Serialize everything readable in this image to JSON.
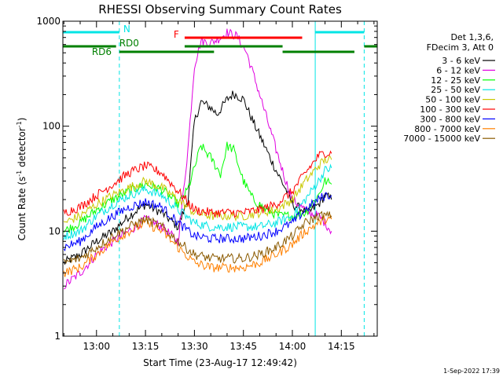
{
  "chart_data": {
    "type": "line",
    "title": "RHESSI Observing Summary Count Rates",
    "xlabel": "Start Time (23-Aug-17 12:49:42)",
    "ylabel_parts": [
      "Count Rate (s",
      "-1",
      " detector",
      "-1",
      ")"
    ],
    "yscale": "log",
    "ylim": [
      1,
      1000
    ],
    "xlim": [
      "12:49:42",
      "14:26:00"
    ],
    "y_ticks": [
      {
        "value": 1,
        "label": "1"
      },
      {
        "value": 10,
        "label": "10"
      },
      {
        "value": 100,
        "label": "100"
      },
      {
        "value": 1000,
        "label": "1000"
      }
    ],
    "x_ticks": [
      {
        "value": "13:00",
        "label": "13:00"
      },
      {
        "value": "13:15",
        "label": "13:15"
      },
      {
        "value": "13:30",
        "label": "13:30"
      },
      {
        "value": "13:45",
        "label": "13:45"
      },
      {
        "value": "14:00",
        "label": "14:00"
      },
      {
        "value": "14:15",
        "label": "14:15"
      }
    ],
    "legend_header": [
      "Det 1,3,6,",
      "FDecim 3, Att 0"
    ],
    "series": [
      {
        "name": "3 - 6 keV",
        "color": "#000000",
        "x": [
          "12:50",
          "12:55",
          "13:00",
          "13:05",
          "13:10",
          "13:15",
          "13:20",
          "13:25",
          "13:28",
          "13:30",
          "13:32",
          "13:35",
          "13:37",
          "13:40",
          "13:42",
          "13:45",
          "13:48",
          "13:52",
          "13:55",
          "13:58",
          "14:00",
          "14:05",
          "14:08",
          "14:10",
          "14:12"
        ],
        "y": [
          5,
          6,
          8,
          10,
          14,
          18,
          15,
          11,
          20,
          110,
          170,
          150,
          130,
          180,
          205,
          180,
          110,
          60,
          38,
          25,
          18,
          15,
          18,
          22,
          20
        ]
      },
      {
        "name": "6 - 12 keV",
        "color": "#e000e0",
        "x": [
          "12:50",
          "12:55",
          "13:00",
          "13:05",
          "13:10",
          "13:15",
          "13:20",
          "13:25",
          "13:28",
          "13:30",
          "13:32",
          "13:35",
          "13:38",
          "13:40",
          "13:43",
          "13:46",
          "13:50",
          "13:55",
          "13:58",
          "14:00",
          "14:05",
          "14:08",
          "14:10",
          "14:12"
        ],
        "y": [
          3,
          4,
          6,
          8,
          10,
          13,
          11,
          8,
          60,
          380,
          650,
          620,
          700,
          780,
          720,
          500,
          200,
          60,
          30,
          20,
          15,
          14,
          12,
          10
        ]
      },
      {
        "name": "12 - 25 keV",
        "color": "#00ff00",
        "x": [
          "12:50",
          "12:55",
          "13:00",
          "13:05",
          "13:10",
          "13:15",
          "13:20",
          "13:25",
          "13:28",
          "13:30",
          "13:32",
          "13:35",
          "13:38",
          "13:40",
          "13:42",
          "13:45",
          "13:48",
          "13:52",
          "13:56",
          "14:00",
          "14:04",
          "14:08",
          "14:10",
          "14:12"
        ],
        "y": [
          10,
          12,
          16,
          20,
          24,
          28,
          25,
          18,
          25,
          40,
          65,
          50,
          35,
          65,
          60,
          30,
          20,
          16,
          14,
          14,
          15,
          22,
          30,
          28
        ]
      },
      {
        "name": "25 - 50 keV",
        "color": "#00e5e5",
        "x": [
          "12:50",
          "12:55",
          "13:00",
          "13:05",
          "13:10",
          "13:15",
          "13:20",
          "13:25",
          "13:30",
          "13:35",
          "13:40",
          "13:45",
          "13:50",
          "13:55",
          "14:00",
          "14:04",
          "14:08",
          "14:10",
          "14:12"
        ],
        "y": [
          9,
          10,
          14,
          18,
          22,
          25,
          22,
          16,
          12,
          11,
          11,
          11,
          11,
          12,
          14,
          20,
          30,
          38,
          40
        ]
      },
      {
        "name": "50 - 100 keV",
        "color": "#c8c800",
        "x": [
          "12:50",
          "12:55",
          "13:00",
          "13:05",
          "13:10",
          "13:15",
          "13:20",
          "13:25",
          "13:30",
          "13:35",
          "13:40",
          "13:45",
          "13:50",
          "13:55",
          "14:00",
          "14:04",
          "14:08",
          "14:10",
          "14:12"
        ],
        "y": [
          12,
          14,
          18,
          22,
          26,
          30,
          26,
          20,
          15,
          14,
          14,
          14,
          15,
          16,
          20,
          30,
          42,
          48,
          48
        ]
      },
      {
        "name": "100 - 300 keV",
        "color": "#ff0000",
        "x": [
          "12:50",
          "12:55",
          "13:00",
          "13:05",
          "13:10",
          "13:15",
          "13:20",
          "13:25",
          "13:30",
          "13:35",
          "13:40",
          "13:45",
          "13:50",
          "13:55",
          "14:00",
          "14:04",
          "14:08",
          "14:10",
          "14:12"
        ],
        "y": [
          15,
          17,
          22,
          28,
          36,
          42,
          36,
          24,
          16,
          15,
          15,
          15,
          16,
          18,
          24,
          36,
          52,
          56,
          55
        ]
      },
      {
        "name": "300 - 800 keV",
        "color": "#0000ff",
        "x": [
          "12:50",
          "12:55",
          "13:00",
          "13:05",
          "13:10",
          "13:15",
          "13:20",
          "13:25",
          "13:30",
          "13:35",
          "13:40",
          "13:45",
          "13:50",
          "13:55",
          "14:00",
          "14:04",
          "14:08",
          "14:10",
          "14:12"
        ],
        "y": [
          7,
          8,
          11,
          14,
          17,
          19,
          17,
          12,
          9,
          8.5,
          8.5,
          8.5,
          9,
          10,
          12,
          16,
          20,
          22,
          22
        ]
      },
      {
        "name": "800 - 7000 keV",
        "color": "#ff8000",
        "x": [
          "12:50",
          "12:55",
          "13:00",
          "13:05",
          "13:10",
          "13:15",
          "13:20",
          "13:25",
          "13:30",
          "13:35",
          "13:40",
          "13:45",
          "13:50",
          "13:55",
          "14:00",
          "14:04",
          "14:08",
          "14:10",
          "14:12"
        ],
        "y": [
          4,
          4.5,
          6,
          8,
          10,
          12,
          10,
          7,
          5,
          4.5,
          4.5,
          4.5,
          5,
          6,
          7.5,
          10,
          12,
          13,
          13
        ]
      },
      {
        "name": "7000 - 15000 keV",
        "color": "#8b5a00",
        "x": [
          "12:50",
          "12:55",
          "13:00",
          "13:05",
          "13:10",
          "13:15",
          "13:20",
          "13:25",
          "13:30",
          "13:35",
          "13:40",
          "13:45",
          "13:50",
          "13:55",
          "14:00",
          "14:04",
          "14:08",
          "14:10",
          "14:12"
        ],
        "y": [
          5,
          5.5,
          7,
          9,
          11,
          13,
          11,
          8,
          6,
          5.5,
          5.5,
          5.5,
          6,
          7,
          9,
          12,
          14,
          14,
          14
        ]
      }
    ],
    "flag_bars": [
      {
        "label": "N",
        "color": "#00e5e5",
        "segments": [
          [
            "12:49:42",
            "13:07"
          ],
          [
            "14:07",
            "14:22"
          ]
        ]
      },
      {
        "label": "F",
        "color": "#ff0000",
        "segments": [
          [
            "13:27",
            "14:03"
          ]
        ]
      },
      {
        "label": "RD0",
        "color": "#008000",
        "segments": [
          [
            "12:49:42",
            "13:06"
          ],
          [
            "13:27",
            "13:57"
          ],
          [
            "14:22",
            "14:26"
          ]
        ]
      },
      {
        "label": "RD6",
        "color": "#008000",
        "segments": [
          [
            "13:07",
            "13:36"
          ],
          [
            "13:57",
            "14:19"
          ]
        ]
      }
    ],
    "vertical_lines": [
      {
        "time": "12:49:42",
        "color": "#00e5e5",
        "style": "solid"
      },
      {
        "time": "13:07",
        "color": "#00e5e5",
        "style": "dashed"
      },
      {
        "time": "14:07",
        "color": "#00e5e5",
        "style": "solid"
      },
      {
        "time": "14:22",
        "color": "#00e5e5",
        "style": "dashed"
      }
    ],
    "grid": false,
    "legend_position": "right"
  },
  "footer": {
    "date": "1-Sep-2022 17:39"
  }
}
